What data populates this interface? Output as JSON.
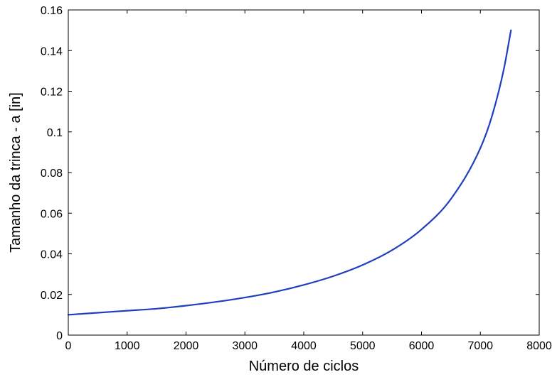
{
  "chart_data": {
    "type": "line",
    "title": "",
    "xlabel": "Número de ciclos",
    "ylabel": "Tamanho da trinca - a [in]",
    "xlim": [
      0,
      8000
    ],
    "ylim": [
      0,
      0.16
    ],
    "xticks": [
      0,
      1000,
      2000,
      3000,
      4000,
      5000,
      6000,
      7000,
      8000
    ],
    "xtick_labels": [
      "0",
      "1000",
      "2000",
      "3000",
      "4000",
      "5000",
      "6000",
      "7000",
      "8000"
    ],
    "yticks": [
      0,
      0.02,
      0.04,
      0.06,
      0.08,
      0.1,
      0.12,
      0.14,
      0.16
    ],
    "ytick_labels": [
      "0",
      "0.02",
      "0.04",
      "0.06",
      "0.08",
      "0.1",
      "0.12",
      "0.14",
      "0.16"
    ],
    "grid": false,
    "legend": "none",
    "series": [
      {
        "color": "#1f3fbf",
        "x": [
          0,
          500,
          1000,
          1500,
          2000,
          2500,
          3000,
          3500,
          4000,
          4500,
          5000,
          5500,
          6000,
          6500,
          7000,
          7200,
          7400,
          7520
        ],
        "y": [
          0.01,
          0.011,
          0.012,
          0.013,
          0.0145,
          0.0163,
          0.0185,
          0.0212,
          0.0247,
          0.029,
          0.0345,
          0.0418,
          0.052,
          0.067,
          0.092,
          0.108,
          0.131,
          0.15
        ]
      }
    ]
  }
}
